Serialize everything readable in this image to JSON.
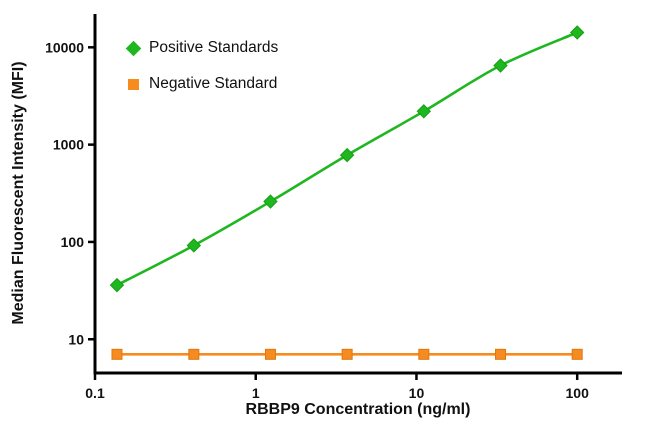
{
  "chart_data": {
    "type": "line",
    "title": "",
    "xlabel": "RBBP9 Concentration (ng/ml)",
    "ylabel": "Median Fluorescent Intensity (MFI)",
    "x_scale": "log",
    "y_scale": "log",
    "xlim": [
      0.1,
      190
    ],
    "ylim": [
      4.5,
      22000
    ],
    "x_ticks": [
      "0.1",
      "1",
      "10",
      "100"
    ],
    "x_tick_values": [
      0.1,
      1,
      10,
      100
    ],
    "y_ticks": [
      "10",
      "100",
      "1000",
      "10000"
    ],
    "y_tick_values": [
      10,
      100,
      1000,
      10000
    ],
    "grid": "off",
    "legend_position": "top-left-inside",
    "x": [
      0.137,
      0.412,
      1.235,
      3.704,
      11.11,
      33.33,
      100
    ],
    "series": [
      {
        "name": "Positive Standards",
        "color": "#1fb71f",
        "edge_color": "#13a013",
        "marker": "diamond",
        "values": [
          36,
          92,
          260,
          780,
          2200,
          6500,
          14200
        ]
      },
      {
        "name": "Negative Standard",
        "color": "#f68b1f",
        "edge_color": "#e0780e",
        "marker": "square",
        "values": [
          7,
          7,
          7,
          7,
          7,
          7,
          7
        ]
      }
    ]
  }
}
